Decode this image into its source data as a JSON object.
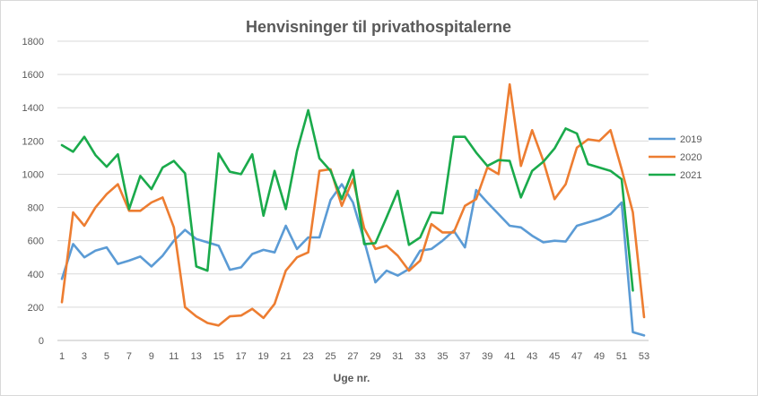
{
  "chart_data": {
    "type": "line",
    "title": "Henvisninger til privathospitalerne",
    "xlabel": "Uge nr.",
    "ylabel": "",
    "ylim": [
      0,
      1800
    ],
    "yticks": [
      0,
      200,
      400,
      600,
      800,
      1000,
      1200,
      1400,
      1600,
      1800
    ],
    "xticks": [
      1,
      3,
      5,
      7,
      9,
      11,
      13,
      15,
      17,
      19,
      21,
      23,
      25,
      27,
      29,
      31,
      33,
      35,
      37,
      39,
      41,
      43,
      45,
      47,
      49,
      51,
      53
    ],
    "x": [
      1,
      2,
      3,
      4,
      5,
      6,
      7,
      8,
      9,
      10,
      11,
      12,
      13,
      14,
      15,
      16,
      17,
      18,
      19,
      20,
      21,
      22,
      23,
      24,
      25,
      26,
      27,
      28,
      29,
      30,
      31,
      32,
      33,
      34,
      35,
      36,
      37,
      38,
      39,
      40,
      41,
      42,
      43,
      44,
      45,
      46,
      47,
      48,
      49,
      50,
      51,
      52,
      53
    ],
    "grid": "horizontal",
    "legend_position": "right",
    "series": [
      {
        "name": "2019",
        "color": "#5b9bd5",
        "values": [
          370,
          580,
          500,
          540,
          560,
          460,
          480,
          505,
          445,
          510,
          600,
          665,
          610,
          590,
          570,
          425,
          440,
          520,
          545,
          530,
          690,
          550,
          620,
          620,
          845,
          940,
          830,
          600,
          350,
          420,
          390,
          430,
          540,
          550,
          600,
          660,
          560,
          905,
          830,
          760,
          690,
          680,
          630,
          590,
          600,
          595,
          690,
          710,
          730,
          760,
          830,
          50,
          30
        ]
      },
      {
        "name": "2020",
        "color": "#ed7d31",
        "values": [
          230,
          770,
          690,
          800,
          880,
          940,
          780,
          780,
          830,
          860,
          680,
          200,
          145,
          105,
          90,
          145,
          150,
          190,
          135,
          220,
          420,
          500,
          530,
          1020,
          1030,
          810,
          970,
          675,
          550,
          570,
          510,
          420,
          480,
          700,
          650,
          650,
          810,
          850,
          1040,
          1000,
          1540,
          1050,
          1265,
          1080,
          850,
          940,
          1160,
          1210,
          1200,
          1265,
          1030,
          770,
          140
        ]
      },
      {
        "name": "2021",
        "color": "#1aaa4b",
        "values": [
          1175,
          1135,
          1225,
          1115,
          1045,
          1120,
          790,
          990,
          910,
          1040,
          1080,
          1005,
          445,
          420,
          1125,
          1015,
          1000,
          1120,
          750,
          1020,
          790,
          1140,
          1385,
          1095,
          1020,
          850,
          1025,
          580,
          585,
          740,
          900,
          575,
          620,
          770,
          765,
          1225,
          1225,
          1130,
          1050,
          1085,
          1080,
          860,
          1020,
          1075,
          1155,
          1275,
          1245,
          1060,
          1040,
          1020,
          970,
          300,
          null
        ]
      }
    ]
  }
}
